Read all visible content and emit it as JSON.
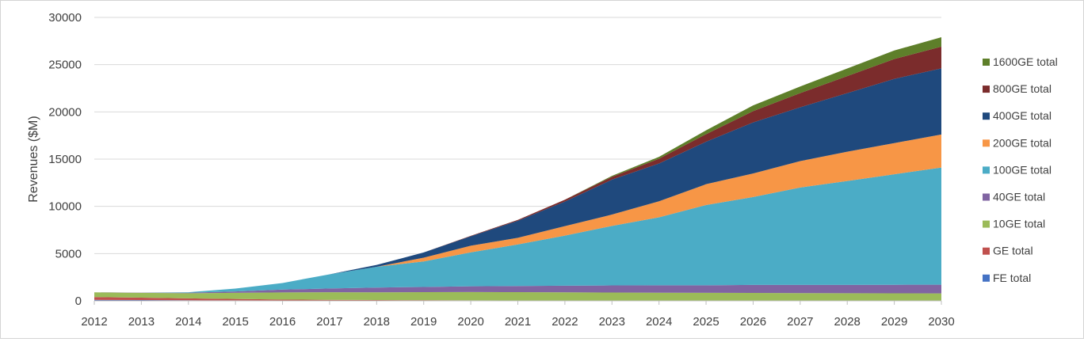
{
  "chart_data": {
    "type": "area",
    "stacked": true,
    "title": "",
    "xlabel": "",
    "ylabel": "Revenues ($M)",
    "ylim": [
      0,
      30000
    ],
    "yticks": [
      0,
      5000,
      10000,
      15000,
      20000,
      25000,
      30000
    ],
    "grid": true,
    "legend_position": "right",
    "x": [
      "2012",
      "2013",
      "2014",
      "2015",
      "2016",
      "2017",
      "2018",
      "2019",
      "2020",
      "2021",
      "2022",
      "2023",
      "2024",
      "2025",
      "2026",
      "2027",
      "2028",
      "2029",
      "2030"
    ],
    "series": [
      {
        "name": "FE total",
        "color": "#4472C4",
        "values": [
          100,
          80,
          60,
          50,
          40,
          30,
          25,
          20,
          15,
          10,
          10,
          10,
          10,
          10,
          10,
          10,
          10,
          10,
          10
        ]
      },
      {
        "name": "GE total",
        "color": "#C0504D",
        "values": [
          300,
          250,
          200,
          150,
          100,
          80,
          60,
          50,
          40,
          30,
          25,
          20,
          20,
          15,
          15,
          10,
          10,
          10,
          10
        ]
      },
      {
        "name": "10GE total",
        "color": "#9BBB59",
        "values": [
          500,
          520,
          550,
          650,
          750,
          800,
          820,
          850,
          880,
          880,
          870,
          850,
          830,
          820,
          810,
          800,
          790,
          780,
          770
        ]
      },
      {
        "name": "40GE total",
        "color": "#8064A2",
        "values": [
          0,
          20,
          50,
          150,
          300,
          400,
          500,
          550,
          600,
          650,
          700,
          750,
          780,
          800,
          850,
          870,
          880,
          900,
          920
        ]
      },
      {
        "name": "100GE total",
        "color": "#4BACC6",
        "values": [
          0,
          0,
          50,
          300,
          700,
          1500,
          2200,
          2700,
          3600,
          4400,
          5300,
          6300,
          7200,
          8500,
          9300,
          10300,
          11000,
          11700,
          12400
        ]
      },
      {
        "name": "200GE total",
        "color": "#F79646",
        "values": [
          0,
          0,
          0,
          0,
          0,
          0,
          0,
          400,
          700,
          700,
          1000,
          1200,
          1700,
          2200,
          2500,
          2800,
          3100,
          3300,
          3500
        ]
      },
      {
        "name": "400GE total",
        "color": "#1F497D",
        "values": [
          0,
          0,
          0,
          0,
          0,
          0,
          200,
          550,
          1000,
          1800,
          2600,
          3700,
          4000,
          4500,
          5400,
          5700,
          6200,
          6800,
          7000
        ]
      },
      {
        "name": "800GE total",
        "color": "#7B2C2C",
        "values": [
          0,
          0,
          0,
          0,
          0,
          0,
          0,
          0,
          50,
          100,
          200,
          300,
          500,
          800,
          1200,
          1500,
          1800,
          2100,
          2300
        ]
      },
      {
        "name": "1600GE total",
        "color": "#5E7F2A",
        "values": [
          0,
          0,
          0,
          0,
          0,
          0,
          0,
          0,
          0,
          0,
          0,
          100,
          200,
          400,
          600,
          700,
          800,
          900,
          1000
        ]
      }
    ]
  }
}
